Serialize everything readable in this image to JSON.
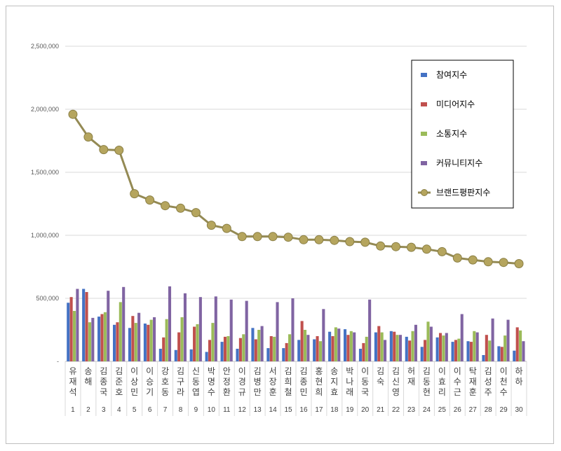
{
  "chart_data": {
    "type": "bar",
    "title": "",
    "xlabel": "",
    "ylabel": "",
    "ylim": [
      0,
      2500000
    ],
    "yticks": [
      0,
      500000,
      1000000,
      1500000,
      2000000,
      2500000
    ],
    "ytick_labels": [
      "-",
      "500,000",
      "1,000,000",
      "1,500,000",
      "2,000,000",
      "2,500,000"
    ],
    "grid": true,
    "legend_position": "top-right",
    "categories": [
      "유재석",
      "송해",
      "김종국",
      "김준호",
      "이상민",
      "이승기",
      "강호동",
      "김구라",
      "신동엽",
      "박명수",
      "안정환",
      "이경규",
      "김병만",
      "서장훈",
      "김희철",
      "김종민",
      "홍현희",
      "송지효",
      "박나래",
      "이동국",
      "김숙",
      "김신영",
      "허재",
      "김동현",
      "이효리",
      "이수근",
      "탁재훈",
      "김성주",
      "이천수",
      "하하"
    ],
    "ranks": [
      "1",
      "2",
      "3",
      "4",
      "5",
      "6",
      "7",
      "8",
      "9",
      "10",
      "11",
      "12",
      "13",
      "14",
      "15",
      "16",
      "17",
      "18",
      "19",
      "20",
      "21",
      "22",
      "23",
      "24",
      "25",
      "26",
      "27",
      "28",
      "29",
      "30"
    ],
    "series": [
      {
        "name": "참여지수",
        "type": "bar",
        "color": "#4472c4",
        "values": [
          465000,
          575000,
          355000,
          290000,
          265000,
          300000,
          100000,
          90000,
          95000,
          75000,
          155000,
          100000,
          265000,
          105000,
          105000,
          170000,
          175000,
          235000,
          255000,
          100000,
          230000,
          240000,
          195000,
          115000,
          190000,
          155000,
          160000,
          50000,
          120000,
          85000
        ]
      },
      {
        "name": "미디어지수",
        "type": "bar",
        "color": "#c0504d",
        "values": [
          510000,
          550000,
          375000,
          310000,
          360000,
          290000,
          190000,
          230000,
          275000,
          170000,
          195000,
          185000,
          175000,
          200000,
          145000,
          320000,
          200000,
          200000,
          210000,
          145000,
          280000,
          235000,
          165000,
          170000,
          225000,
          170000,
          155000,
          210000,
          115000,
          270000
        ]
      },
      {
        "name": "소통지수",
        "type": "bar",
        "color": "#9bbb59",
        "values": [
          400000,
          310000,
          390000,
          470000,
          305000,
          330000,
          335000,
          350000,
          295000,
          305000,
          200000,
          215000,
          250000,
          195000,
          215000,
          250000,
          160000,
          270000,
          240000,
          195000,
          230000,
          210000,
          240000,
          315000,
          205000,
          180000,
          240000,
          165000,
          205000,
          245000
        ]
      },
      {
        "name": "커뮤니티지수",
        "type": "bar",
        "color": "#8064a2",
        "values": [
          575000,
          345000,
          560000,
          590000,
          385000,
          350000,
          595000,
          540000,
          510000,
          515000,
          490000,
          480000,
          280000,
          470000,
          500000,
          210000,
          415000,
          260000,
          230000,
          490000,
          170000,
          210000,
          290000,
          275000,
          225000,
          375000,
          230000,
          340000,
          330000,
          160000
        ]
      },
      {
        "name": "브랜드평판지수",
        "type": "line",
        "color": "#948a54",
        "values": [
          1960000,
          1780000,
          1680000,
          1675000,
          1330000,
          1280000,
          1235000,
          1215000,
          1180000,
          1080000,
          1055000,
          990000,
          990000,
          990000,
          985000,
          965000,
          965000,
          960000,
          950000,
          945000,
          915000,
          910000,
          905000,
          890000,
          870000,
          820000,
          805000,
          790000,
          785000,
          775000
        ]
      }
    ]
  }
}
